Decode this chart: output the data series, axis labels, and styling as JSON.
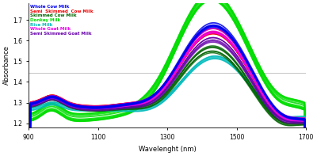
{
  "xlabel": "Wavelenght (nm)",
  "ylabel": "Absorbance",
  "xlim": [
    900,
    1700
  ],
  "ylim": [
    1.18,
    1.78
  ],
  "xticks": [
    900,
    1100,
    1300,
    1500,
    1700
  ],
  "yticks": [
    1.2,
    1.3,
    1.4,
    1.5,
    1.6,
    1.7
  ],
  "legend": [
    {
      "label": "Whole Cow Milk",
      "color": "#0000EE"
    },
    {
      "label": "Semi  Skimmed  Cow Milk",
      "color": "#EE0000"
    },
    {
      "label": "Skimmed Cow Milk",
      "color": "#006400"
    },
    {
      "label": "Donkey Milk",
      "color": "#00DD00"
    },
    {
      "label": "Rice Milk",
      "color": "#00BBBB"
    },
    {
      "label": "Whole Goat Milk",
      "color": "#EE00EE"
    },
    {
      "label": "Semi Skimmed Goat Milk",
      "color": "#6600AA"
    }
  ],
  "bg_color": "#FFFFFF",
  "grid_color": "#BBBBBB",
  "hline_y": 1.445
}
